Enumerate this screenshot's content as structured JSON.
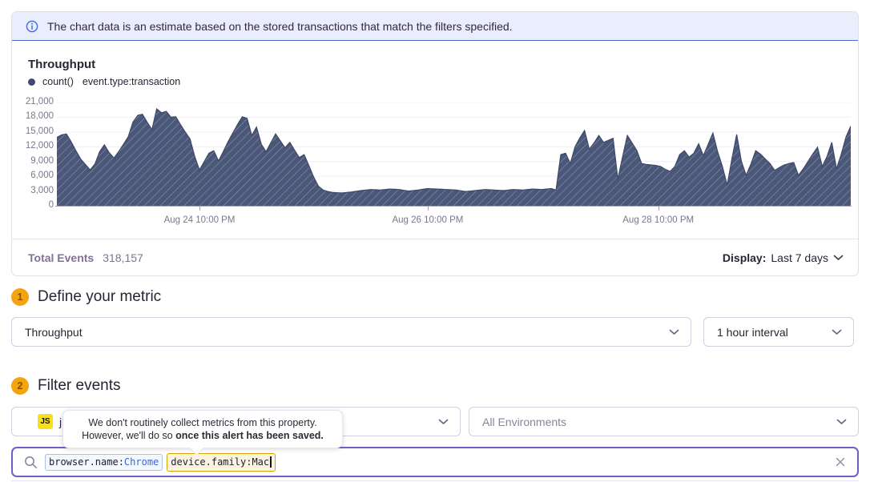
{
  "banner": {
    "icon": "info-icon",
    "text": "The chart data is an estimate based on the stored transactions that match the filters specified."
  },
  "chart": {
    "title": "Throughput",
    "legend": {
      "series_label": "count()",
      "filter_label": "event.type:transaction"
    }
  },
  "chart_data": {
    "type": "area",
    "title": "Throughput",
    "series": [
      {
        "name": "count()",
        "query": "event.type:transaction",
        "values": [
          13900,
          14400,
          14600,
          13000,
          11200,
          9500,
          8400,
          7300,
          8500,
          11000,
          12400,
          10800,
          9700,
          11000,
          12500,
          14000,
          17000,
          18400,
          18600,
          17000,
          15500,
          19700,
          18900,
          19200,
          18000,
          18100,
          16500,
          15000,
          13600,
          10000,
          7300,
          9000,
          10700,
          11200,
          9100,
          11000,
          13000,
          14800,
          16500,
          18100,
          17800,
          14300,
          16000,
          12500,
          11000,
          12800,
          14600,
          13200,
          11800,
          12900,
          11300,
          9800,
          10400,
          8200,
          5900,
          4000,
          3200,
          2900,
          2700,
          2650,
          2600,
          2700,
          2800,
          2950,
          3100,
          3200,
          3300,
          3250,
          3200,
          3300,
          3400,
          3350,
          3300,
          3150,
          3000,
          3100,
          3200,
          3350,
          3500,
          3450,
          3400,
          3350,
          3300,
          3250,
          3200,
          3050,
          2900,
          3000,
          3100,
          3200,
          3300,
          3250,
          3200,
          3150,
          3100,
          3200,
          3300,
          3250,
          3200,
          3300,
          3400,
          3350,
          3300,
          3400,
          3500,
          3200,
          10400,
          10700,
          8600,
          12000,
          13800,
          15300,
          11500,
          12800,
          14300,
          12900,
          13300,
          13700,
          5400,
          10000,
          14300,
          12800,
          11200,
          8600,
          8400,
          8300,
          8200,
          8000,
          7400,
          7000,
          8000,
          10400,
          11200,
          9900,
          10700,
          12600,
          10200,
          12500,
          14800,
          11000,
          8000,
          4200,
          9500,
          14500,
          9000,
          6200,
          8500,
          11200,
          10500,
          9500,
          8600,
          7200,
          7800,
          8300,
          8600,
          8800,
          6200,
          7500,
          9000,
          10500,
          11900,
          8000,
          10000,
          12900,
          7500,
          10500,
          14000,
          16200
        ]
      }
    ],
    "interval": "1 hour",
    "x_tick_labels": [
      "Aug 24 10:00 PM",
      "Aug 26 10:00 PM",
      "Aug 28 10:00 PM"
    ],
    "x_tick_indices": [
      30,
      78,
      126.5
    ],
    "y_ticks": [
      0,
      3000,
      6000,
      9000,
      12000,
      15000,
      18000,
      21000
    ],
    "y_tick_labels": [
      "0",
      "3,000",
      "6,000",
      "9,000",
      "12,000",
      "15,000",
      "18,000",
      "21,000"
    ],
    "ylim": [
      0,
      21000
    ],
    "grid": "horizontal",
    "legend_position": "top-left",
    "fill_color": "#4a5778",
    "hatch_color": "#9aa2b6",
    "line_color": "#3d4968"
  },
  "summary": {
    "total_events_label": "Total Events",
    "total_events_value": "318,157",
    "display_label": "Display:",
    "display_value": "Last 7 days"
  },
  "sections": {
    "metric": {
      "step": "1",
      "title": "Define your metric",
      "metric_select": "Throughput",
      "interval_select": "1 hour interval"
    },
    "filter": {
      "step": "2",
      "title": "Filter events",
      "project_badge": "JS",
      "project_visible_text": "j",
      "environment_select": "All Environments"
    }
  },
  "tooltip": {
    "line1": "We don't routinely collect metrics from this property.",
    "line2_prefix": "However, we'll do so ",
    "line2_bold": "once this alert has been saved."
  },
  "search": {
    "tokens": [
      {
        "key": "browser.name:",
        "value": "Chrome",
        "state": "valid"
      },
      {
        "key": "device.family:",
        "value": "Mac",
        "state": "warning"
      }
    ]
  },
  "icons": {
    "info": "circled-i",
    "chevron_down": "v",
    "search": "magnifier",
    "clear": "x"
  },
  "colors": {
    "accent_purple": "#6c5fc7",
    "banner_bg": "#eaedfb",
    "banner_border": "#4f68c9",
    "step_badge": "#f4a40f",
    "js_badge": "#f7df1e",
    "token_valid_border": "#a9c0ef",
    "token_warning_border": "#d6a302",
    "chart_fill": "#4a5778"
  }
}
